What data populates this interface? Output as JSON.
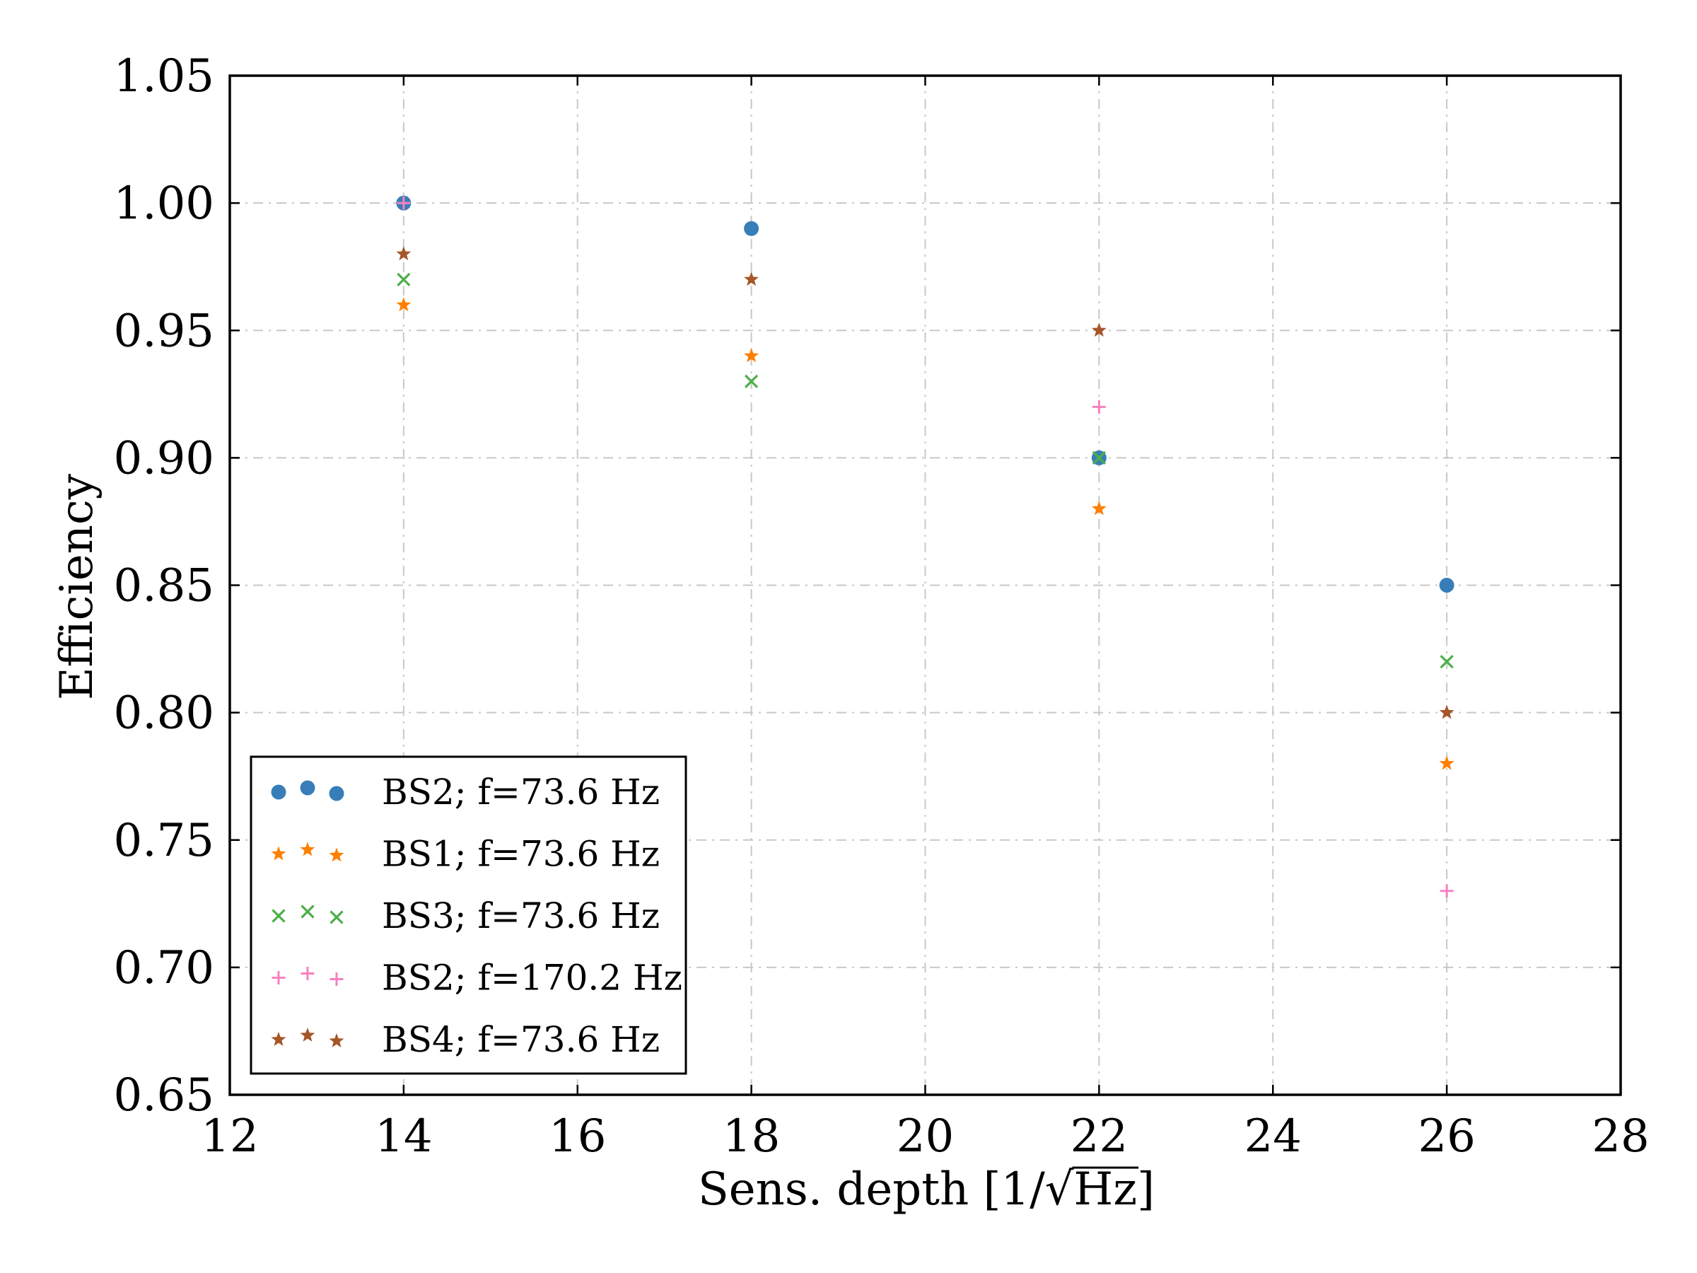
{
  "chart_data": {
    "type": "scatter",
    "title": "",
    "xlabel": "Sens. depth [1/√Hz]",
    "xlabel_parts": {
      "prefix": "Sens. depth [1/",
      "radical": "√",
      "radicand": "Hz",
      "suffix": "]"
    },
    "ylabel": "Efficiency",
    "xlim": [
      12,
      28
    ],
    "ylim": [
      0.65,
      1.05
    ],
    "xticks": [
      12,
      14,
      16,
      18,
      20,
      22,
      24,
      26,
      28
    ],
    "xtick_labels": [
      "12",
      "14",
      "16",
      "18",
      "20",
      "22",
      "24",
      "26",
      "28"
    ],
    "yticks": [
      0.65,
      0.7,
      0.75,
      0.8,
      0.85,
      0.9,
      0.95,
      1.0,
      1.05
    ],
    "ytick_labels": [
      "0.65",
      "0.70",
      "0.75",
      "0.80",
      "0.85",
      "0.90",
      "0.95",
      "1.00",
      "1.05"
    ],
    "grid": true,
    "legend_position": "lower-left",
    "series": [
      {
        "name": "BS2; f=73.6 Hz",
        "marker": "circle",
        "color": "#377eb8",
        "x": [
          14,
          18,
          22,
          26
        ],
        "y": [
          1.0,
          0.99,
          0.9,
          0.85
        ]
      },
      {
        "name": "BS1; f=73.6 Hz",
        "marker": "star",
        "color": "#ff7f00",
        "x": [
          14,
          18,
          22,
          26
        ],
        "y": [
          0.96,
          0.94,
          0.88,
          0.78
        ]
      },
      {
        "name": "BS3; f=73.6 Hz",
        "marker": "x",
        "color": "#4daf4a",
        "x": [
          14,
          18,
          22,
          26
        ],
        "y": [
          0.97,
          0.93,
          0.9,
          0.82
        ]
      },
      {
        "name": "BS2; f=170.2 Hz",
        "marker": "plus",
        "color": "#f781bf",
        "x": [
          14,
          22,
          26
        ],
        "y": [
          1.0,
          0.92,
          0.73
        ]
      },
      {
        "name": "BS4; f=73.6 Hz",
        "marker": "star",
        "color": "#a65628",
        "x": [
          14,
          18,
          22,
          26
        ],
        "y": [
          0.98,
          0.97,
          0.95,
          0.8
        ]
      }
    ]
  }
}
